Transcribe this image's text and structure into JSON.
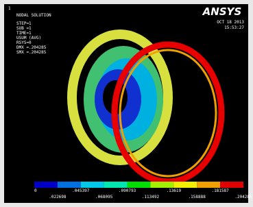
{
  "header": {
    "index": "1",
    "title": "NODAL SOLUTION",
    "lines": [
      "STEP=1",
      "SUB =1",
      "TIME=1",
      "USUM     (AVG)",
      "RSYS=0",
      "DMX =.204285",
      "SMX =.204285"
    ]
  },
  "brand": {
    "logo": "ANSYS",
    "date": "OCT 18 2013",
    "time": "15:53:27"
  },
  "legend": {
    "colors": [
      "#0000c8",
      "#0070e0",
      "#00c8e8",
      "#00e8b0",
      "#00e000",
      "#a0f000",
      "#f0f000",
      "#f0a000",
      "#e00000"
    ],
    "labels": [
      "0",
      ".022698",
      ".045397",
      ".068095",
      ".090793",
      ".113492",
      ".13619",
      ".158888",
      ".181587",
      ".204285"
    ]
  }
}
